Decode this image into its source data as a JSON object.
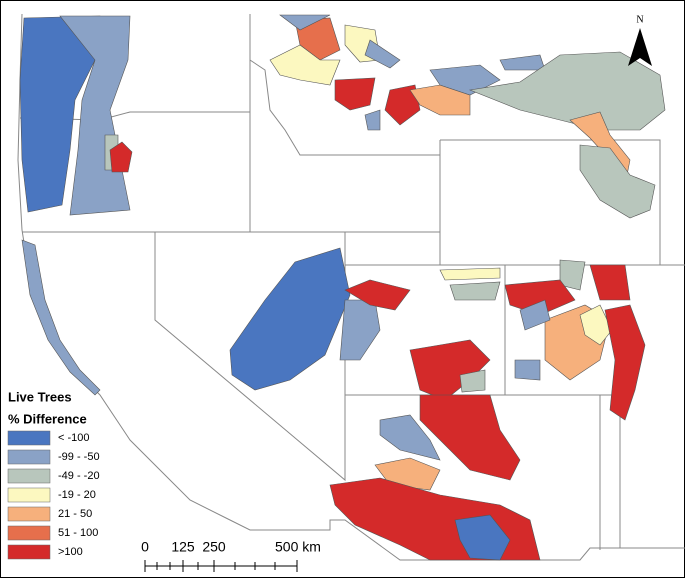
{
  "legend": {
    "title": "Live Trees",
    "subtitle": "% Difference",
    "items": [
      {
        "label": "< -100",
        "color": "#4a76c0"
      },
      {
        "label": "-99 - -50",
        "color": "#8aa2c6"
      },
      {
        "label": "-49 - -20",
        "color": "#b8c6bc"
      },
      {
        "label": "-19 - 20",
        "color": "#fcf8c0"
      },
      {
        "label": "21 - 50",
        "color": "#f6b07c"
      },
      {
        "label": "51 - 100",
        "color": "#e66f4c"
      },
      {
        "label": ">100",
        "color": "#d42a2a"
      }
    ]
  },
  "scale_bar": {
    "labels": [
      "0",
      "125",
      "250",
      "500 km"
    ]
  },
  "north_arrow": {
    "label": "N"
  }
}
